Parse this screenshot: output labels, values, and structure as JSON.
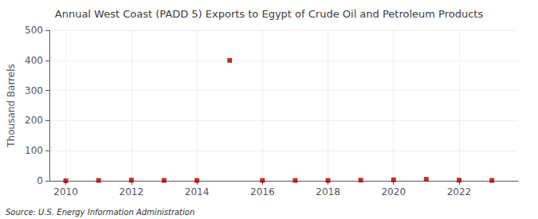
{
  "chart_data": {
    "type": "scatter",
    "title": "Annual West Coast (PADD 5) Exports to Egypt of Crude Oil and Petroleum Products",
    "ylabel": "Thousand Barrels",
    "annotation": "Source: U.S. Energy Information Administration",
    "x": [
      2010,
      2011,
      2012,
      2013,
      2014,
      2015,
      2016,
      2017,
      2018,
      2019,
      2020,
      2021,
      2022,
      2023
    ],
    "values": [
      0,
      1,
      2,
      1,
      1,
      400,
      1,
      1,
      1,
      2,
      3,
      5,
      2,
      1
    ],
    "color": "#aa0000",
    "marker": "square",
    "xlim": [
      2009.5,
      2023.8
    ],
    "ylim": [
      0,
      500
    ],
    "xticks": [
      2010,
      2012,
      2014,
      2016,
      2018,
      2020,
      2022
    ],
    "yticks": [
      0,
      100,
      200,
      300,
      400,
      500
    ],
    "grid": true
  }
}
